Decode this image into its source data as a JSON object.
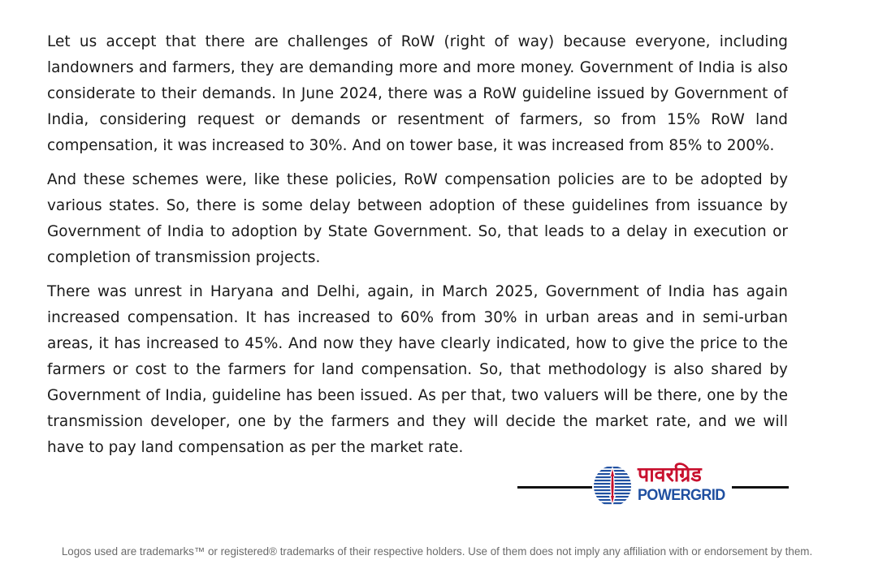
{
  "paragraphs": [
    "Let us accept that there are challenges of RoW (right of way) because everyone, including landowners and farmers, they are demanding more and more money. Government of India is also considerate to their demands. In June 2024, there was a RoW guideline issued by Government of India, considering request or demands or resentment of farmers, so from 15% RoW land compensation, it was increased to 30%. And on tower base, it was increased from 85% to 200%.",
    "And these schemes were, like these policies, RoW compensation policies are to be adopted by various states. So, there is some delay between adoption of these guidelines from issuance by Government of India to adoption by State Government. So, that leads to a delay in execution or completion of transmission projects.",
    "There was unrest in Haryana and Delhi, again, in March 2025, Government of India has again increased compensation. It has increased to 60% from 30% in urban areas and in semi-urban areas, it has increased to 45%. And now they have clearly indicated, how to give the price to the farmers or cost to the farmers for land compensation. So, that methodology is also shared by Government of India, guideline has been issued. As per that, two valuers will be there, one by the transmission developer, one by the farmers and they will decide the market rate, and we will have to pay land compensation as per the market rate."
  ],
  "logo": {
    "hindi": "पावरग्रिड",
    "english": "POWERGRID",
    "icon": "powergrid-globe-emblem",
    "colors": {
      "red": "#c8102e",
      "blue": "#1f4fa0"
    }
  },
  "footer": {
    "disclaimer": "Logos used are trademarks™ or registered® trademarks of their respective holders. Use of them does not imply any affiliation with or endorsement by them."
  }
}
